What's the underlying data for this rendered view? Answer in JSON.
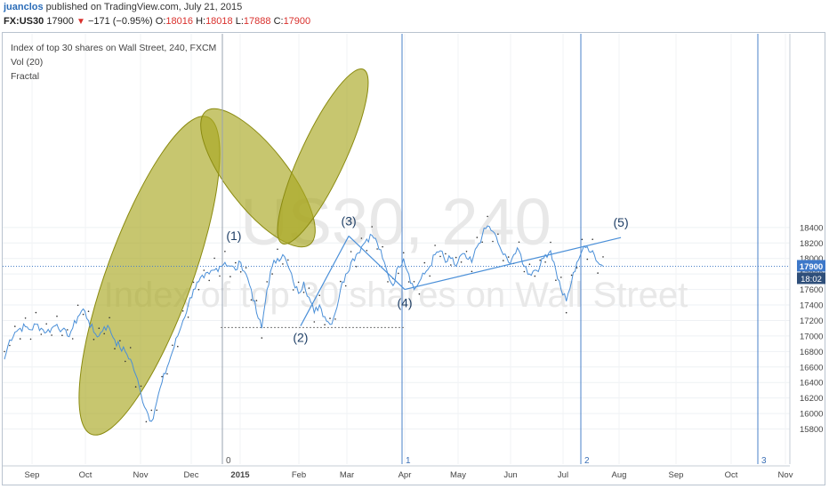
{
  "header": {
    "user": "juanclos",
    "published": " published on TradingView.com, July 21, 2015",
    "symbol": "FX:US30",
    "price": "17900",
    "arrow": "▼",
    "change": "−171 (−0.95%)",
    "open_label": "O:",
    "open": "18016",
    "high_label": "H:",
    "high": "18018",
    "low_label": "L:",
    "low": "17888",
    "close_label": "C:",
    "close": "17900"
  },
  "indicators": [
    "Index of top 30 shares on Wall Street, 240, FXCM",
    "Vol (20)",
    "Fractal"
  ],
  "watermark": {
    "line1": "US30, 240",
    "line2": "Index of top 30 shares on Wall Street"
  },
  "price_badge": "17900",
  "time_badge": "18:02",
  "wave_labels": [
    "(1)",
    "(2)",
    "(3)",
    "(4)",
    "(5)"
  ],
  "vertical_markers": [
    "0",
    "1",
    "2",
    "3"
  ],
  "colors": {
    "price_line": "#4a8fd8",
    "ellipse_fill": "#a9a822",
    "ellipse_stroke": "#8a8a10",
    "badge_bg": "#3d78c9",
    "wave_text": "#1f3f66"
  },
  "chart_data": {
    "type": "line",
    "title": "",
    "xlabel": "",
    "ylabel": "",
    "ylim": [
      15700,
      18550
    ],
    "y_ticks": [
      15800,
      16000,
      16200,
      16400,
      16600,
      16800,
      17000,
      17200,
      17400,
      17600,
      17800,
      18000,
      18200,
      18400
    ],
    "x_ticks": [
      "Sep",
      "Oct",
      "Nov",
      "Dec",
      "2015",
      "Feb",
      "Mar",
      "Apr",
      "May",
      "Jun",
      "Jul",
      "Aug",
      "Sep",
      "Oct",
      "Nov"
    ],
    "series": [
      {
        "values": [
          16700,
          16950,
          17050,
          17100,
          17120,
          17080,
          17150,
          17100,
          17050,
          17100,
          17150,
          17080,
          17000,
          17100,
          17250,
          17350,
          17200,
          17050,
          17000,
          17120,
          17100,
          16950,
          16850,
          16800,
          16700,
          16500,
          16250,
          16050,
          15900,
          16150,
          16400,
          16600,
          16800,
          17000,
          17200,
          17400,
          17600,
          17700,
          17750,
          17800,
          17850,
          17900,
          17950,
          17900,
          17850,
          17950,
          17800,
          17600,
          17300,
          17100,
          17600,
          17900,
          18000,
          18050,
          17900,
          17700,
          17550,
          17700,
          17500,
          17300,
          17400,
          17250,
          17150,
          17300,
          17600,
          17800,
          17950,
          18050,
          18150,
          18250,
          18300,
          18200,
          18000,
          17800,
          17650,
          17900,
          18000,
          17800,
          17600,
          17700,
          17800,
          17900,
          18050,
          18100,
          17950,
          18000,
          17900,
          18050,
          18000,
          17950,
          18150,
          18300,
          18420,
          18350,
          18200,
          18050,
          17950,
          18050,
          18100,
          17900,
          17800,
          17850,
          17900,
          18050,
          18100,
          17850,
          17600,
          17450,
          17700,
          17950,
          18100,
          18150,
          18100,
          17950,
          17900
        ]
      }
    ],
    "wave_points": [
      {
        "label": "(1)",
        "date": "2014-12-28",
        "value": 18100
      },
      {
        "label": "(2)",
        "date": "2015-02-02",
        "value": 17130
      },
      {
        "label": "(3)",
        "date": "2015-03-02",
        "value": 18290
      },
      {
        "label": "(4)",
        "date": "2015-04-01",
        "value": 17600
      },
      {
        "label": "(5)",
        "date": "2015-08-02",
        "value": 18270
      }
    ],
    "last_price": 17900,
    "support_level": 17110
  }
}
